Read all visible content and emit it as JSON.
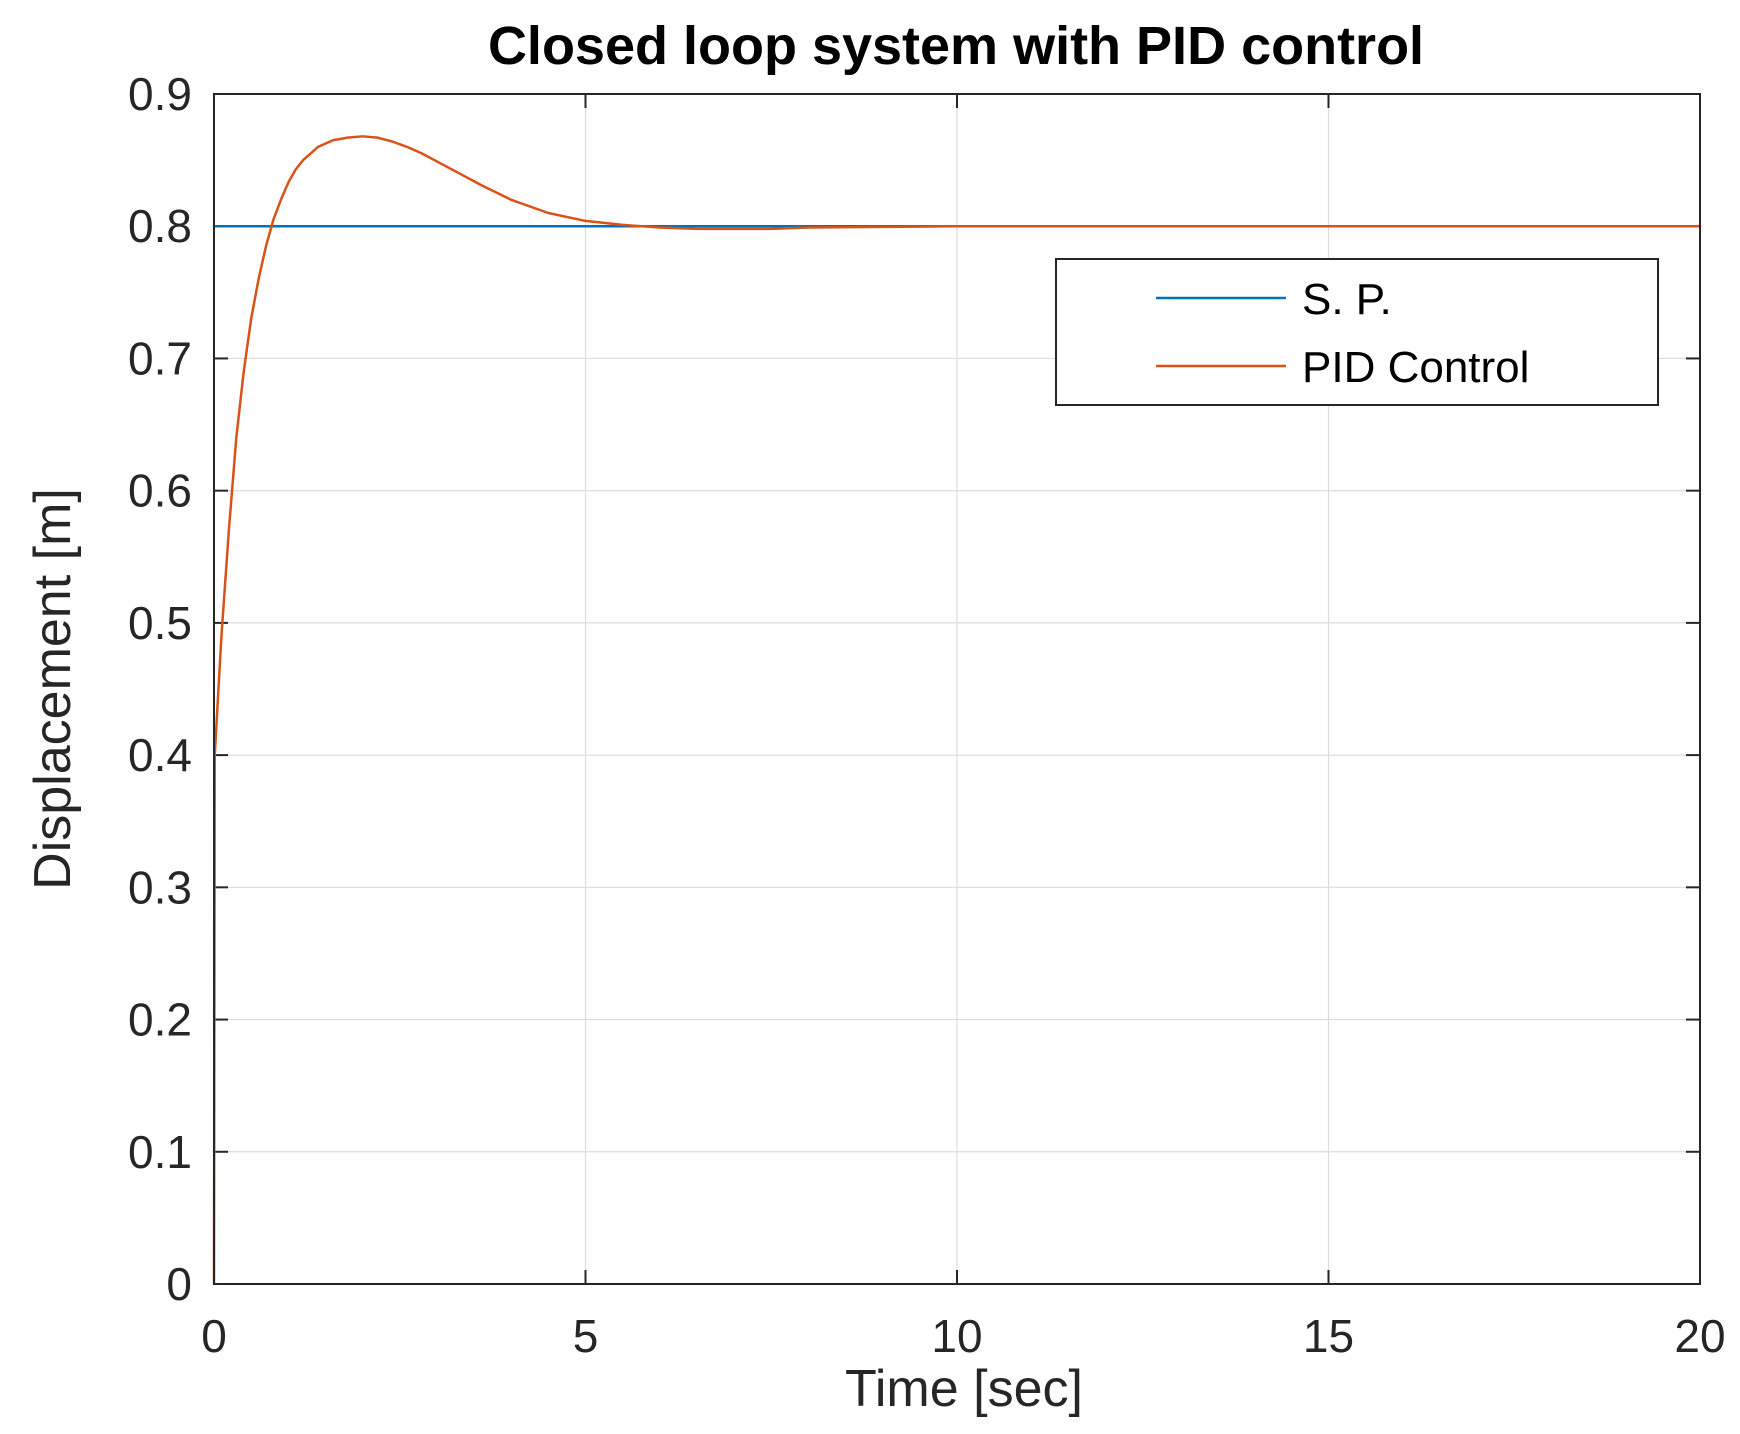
{
  "chart_data": {
    "type": "line",
    "title": "Closed loop system with PID control",
    "xlabel": "Time [sec]",
    "ylabel": "Displacement [m]",
    "xlim": [
      0,
      20
    ],
    "ylim": [
      0,
      0.9
    ],
    "xticks": [
      "0",
      "5",
      "10",
      "15",
      "20"
    ],
    "yticks": [
      "0",
      "0.1",
      "0.2",
      "0.3",
      "0.4",
      "0.5",
      "0.6",
      "0.7",
      "0.8",
      "0.9"
    ],
    "grid": true,
    "legend": {
      "position": "top-right",
      "entries": [
        "S. P.",
        "PID Control"
      ]
    },
    "series": [
      {
        "name": "S. P.",
        "color": "#0072bd",
        "x": [
          0,
          20
        ],
        "y": [
          0.8,
          0.8
        ]
      },
      {
        "name": "PID Control",
        "color": "#d95319",
        "x": [
          0,
          0.01,
          0.05,
          0.1,
          0.2,
          0.3,
          0.4,
          0.5,
          0.6,
          0.7,
          0.8,
          0.9,
          1.0,
          1.1,
          1.2,
          1.4,
          1.6,
          1.8,
          2.0,
          2.2,
          2.4,
          2.6,
          2.8,
          3.0,
          3.3,
          3.6,
          4.0,
          4.5,
          5.0,
          5.5,
          6.0,
          6.5,
          7.0,
          7.5,
          8.0,
          9.0,
          10.0,
          12.0,
          14.0,
          16.0,
          18.0,
          20.0
        ],
        "y": [
          0.0,
          0.4,
          0.44,
          0.49,
          0.57,
          0.64,
          0.69,
          0.73,
          0.76,
          0.785,
          0.805,
          0.82,
          0.833,
          0.843,
          0.85,
          0.86,
          0.865,
          0.867,
          0.868,
          0.867,
          0.864,
          0.86,
          0.855,
          0.849,
          0.84,
          0.831,
          0.82,
          0.81,
          0.804,
          0.801,
          0.799,
          0.798,
          0.798,
          0.798,
          0.799,
          0.7995,
          0.8,
          0.8,
          0.8,
          0.8,
          0.8,
          0.8
        ]
      }
    ]
  }
}
